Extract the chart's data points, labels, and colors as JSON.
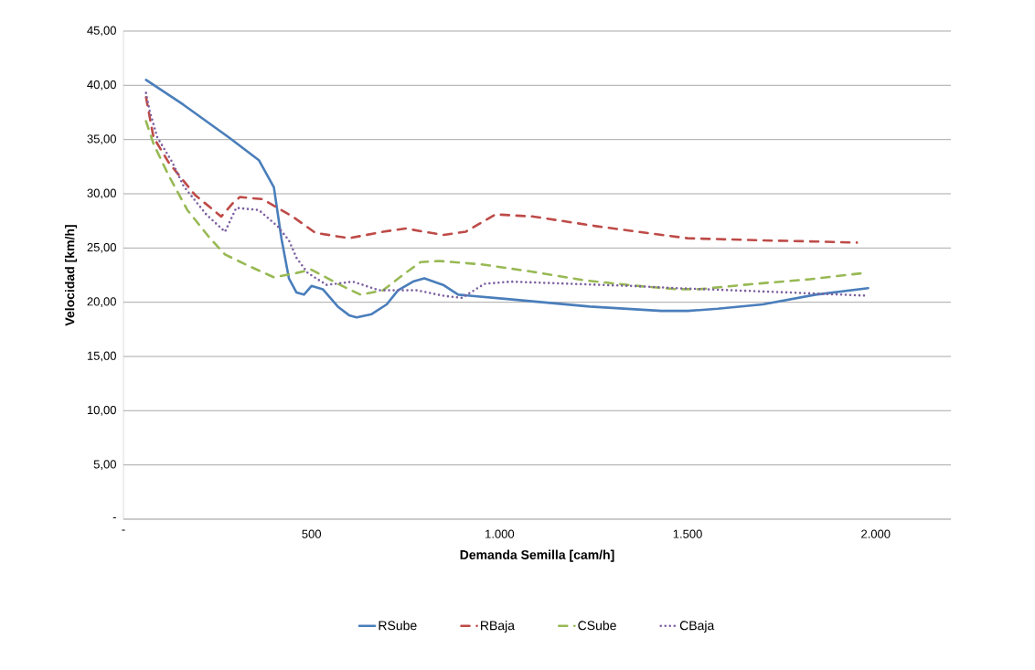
{
  "chart_data": {
    "type": "line",
    "xlabel": "Demanda Semilla [cam/h]",
    "ylabel": "Velocidad [km/h]",
    "xlim": [
      0,
      2200
    ],
    "ylim": [
      0,
      45
    ],
    "xticks": [
      {
        "value": 0,
        "label": "-"
      },
      500,
      {
        "value": 1000,
        "label": "1.000"
      },
      {
        "value": 1500,
        "label": "1.500"
      },
      {
        "value": 2000,
        "label": "2.000"
      }
    ],
    "yticks": [
      {
        "value": 0,
        "label": "-"
      },
      {
        "value": 5,
        "label": "5,00"
      },
      {
        "value": 10,
        "label": "10,00"
      },
      {
        "value": 15,
        "label": "15,00"
      },
      {
        "value": 20,
        "label": "20,00"
      },
      {
        "value": 25,
        "label": "25,00"
      },
      {
        "value": 30,
        "label": "30,00"
      },
      {
        "value": 35,
        "label": "35,00"
      },
      {
        "value": 40,
        "label": "40,00"
      },
      {
        "value": 45,
        "label": "45,00"
      }
    ],
    "grid": "y",
    "legend": "bottom",
    "series": [
      {
        "name": "RSube",
        "color": "#4a7ebb",
        "line_style": "solid",
        "x": [
          60,
          160,
          280,
          360,
          400,
          420,
          440,
          460,
          480,
          500,
          530,
          570,
          600,
          620,
          660,
          700,
          730,
          770,
          800,
          850,
          890,
          1020,
          1240,
          1430,
          1500,
          1580,
          1700,
          1840,
          1980
        ],
        "values": [
          40.5,
          38.2,
          35.2,
          33.1,
          30.6,
          25.9,
          22.2,
          20.9,
          20.7,
          21.5,
          21.2,
          19.6,
          18.8,
          18.6,
          18.9,
          19.8,
          21.1,
          21.9,
          22.2,
          21.6,
          20.7,
          20.3,
          19.6,
          19.2,
          19.2,
          19.4,
          19.8,
          20.7,
          21.3
        ]
      },
      {
        "name": "RBaja",
        "color": "#be4b48",
        "line_style": "dashed",
        "x": [
          60,
          80,
          120,
          190,
          260,
          290,
          310,
          370,
          450,
          510,
          600,
          690,
          750,
          850,
          910,
          990,
          1090,
          1260,
          1410,
          1500,
          1700,
          1840,
          1950
        ],
        "values": [
          38.9,
          35.2,
          32.9,
          29.9,
          27.9,
          29.1,
          29.7,
          29.5,
          27.9,
          26.4,
          25.9,
          26.5,
          26.8,
          26.2,
          26.5,
          28.1,
          27.9,
          27.0,
          26.3,
          25.9,
          25.7,
          25.6,
          25.5
        ]
      },
      {
        "name": "CSube",
        "color": "#98b954",
        "line_style": "dashed",
        "x": [
          60,
          80,
          120,
          170,
          230,
          270,
          330,
          400,
          460,
          500,
          570,
          630,
          690,
          750,
          790,
          840,
          950,
          1090,
          1230,
          1370,
          1470,
          1530,
          1680,
          1820,
          1970
        ],
        "values": [
          36.7,
          34.6,
          31.7,
          28.5,
          25.9,
          24.4,
          23.4,
          22.3,
          22.7,
          23.0,
          21.7,
          20.7,
          21.1,
          22.7,
          23.7,
          23.8,
          23.5,
          22.8,
          22.0,
          21.5,
          21.2,
          21.2,
          21.7,
          22.1,
          22.7
        ]
      },
      {
        "name": "CBaja",
        "color": "#7d60a0",
        "line_style": "dotted",
        "x": [
          60,
          70,
          90,
          130,
          160,
          220,
          270,
          300,
          360,
          410,
          440,
          460,
          490,
          540,
          610,
          680,
          730,
          780,
          850,
          900,
          960,
          1030,
          1190,
          1350,
          1470,
          1620,
          1770,
          1980
        ],
        "values": [
          39.3,
          37.6,
          35.2,
          32.9,
          30.7,
          28.1,
          26.5,
          28.7,
          28.5,
          27.0,
          25.7,
          24.1,
          22.7,
          21.6,
          21.9,
          21.1,
          21.1,
          21.1,
          20.6,
          20.4,
          21.7,
          21.9,
          21.7,
          21.5,
          21.3,
          21.1,
          20.9,
          20.6
        ]
      }
    ]
  }
}
